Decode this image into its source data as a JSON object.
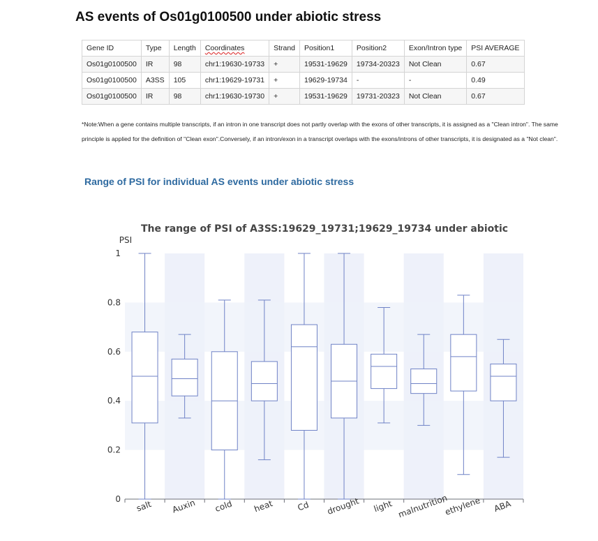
{
  "page": {
    "title": "AS events of Os01g0100500 under abiotic stress",
    "note": "*Note:When a gene contains multiple transcripts, if an intron in one transcript does not partly overlap with the exons of other transcripts, it is assigned as a \"Clean intron\". The same principle is applied for the definition of \"Clean exon\".Conversely, if an intron/exon in a transcript overlaps with the exons/introns of other transcripts, it is designated as a \"Not clean\".",
    "section_title": "Range of PSI for individual AS events under abiotic stress"
  },
  "table": {
    "headers": [
      "Gene ID",
      "Type",
      "Length",
      "Coordinates",
      "Strand",
      "Position1",
      "Position2",
      "Exon/Intron type",
      "PSI AVERAGE"
    ],
    "rows": [
      [
        "Os01g0100500",
        "IR",
        "98",
        "chr1:19630-19733",
        "+",
        "19531-19629",
        "19734-20323",
        "Not Clean",
        "0.67"
      ],
      [
        "Os01g0100500",
        "A3SS",
        "105",
        "chr1:19629-19731",
        "+",
        "19629-19734",
        "-",
        "-",
        "0.49"
      ],
      [
        "Os01g0100500",
        "IR",
        "98",
        "chr1:19630-19730",
        "+",
        "19531-19629",
        "19731-20323",
        "Not Clean",
        "0.67"
      ]
    ]
  },
  "colors": {
    "box_stroke": "#6f82c6",
    "band": "#eef1fa",
    "axis": "#6e7079",
    "title": "#464646",
    "section_title": "#2e6aa0"
  },
  "chart_data": {
    "type": "boxplot",
    "title": "The range of PSI of A3SS:19629_19731;19629_19734 under abiotic",
    "ylabel": "PSI",
    "ylim": [
      0,
      1
    ],
    "yticks": [
      0,
      0.2,
      0.4,
      0.6,
      0.8,
      1
    ],
    "grid": "alternating horizontal bands",
    "categories": [
      "salt",
      "Auxin",
      "cold",
      "heat",
      "Cd",
      "drought",
      "light",
      "malnutrition",
      "ethylene",
      "ABA"
    ],
    "boxes": [
      {
        "min": 0,
        "q1": 0.31,
        "median": 0.5,
        "q3": 0.68,
        "max": 1
      },
      {
        "min": 0.33,
        "q1": 0.42,
        "median": 0.49,
        "q3": 0.57,
        "max": 0.67
      },
      {
        "min": 0,
        "q1": 0.2,
        "median": 0.4,
        "q3": 0.6,
        "max": 0.81
      },
      {
        "min": 0.16,
        "q1": 0.4,
        "median": 0.47,
        "q3": 0.56,
        "max": 0.81
      },
      {
        "min": 0,
        "q1": 0.28,
        "median": 0.62,
        "q3": 0.71,
        "max": 1
      },
      {
        "min": 0,
        "q1": 0.33,
        "median": 0.48,
        "q3": 0.63,
        "max": 1
      },
      {
        "min": 0.31,
        "q1": 0.45,
        "median": 0.54,
        "q3": 0.59,
        "max": 0.78
      },
      {
        "min": 0.3,
        "q1": 0.43,
        "median": 0.47,
        "q3": 0.53,
        "max": 0.67
      },
      {
        "min": 0.1,
        "q1": 0.44,
        "median": 0.58,
        "q3": 0.67,
        "max": 0.83
      },
      {
        "min": 0.17,
        "q1": 0.4,
        "median": 0.5,
        "q3": 0.55,
        "max": 0.65
      }
    ]
  }
}
